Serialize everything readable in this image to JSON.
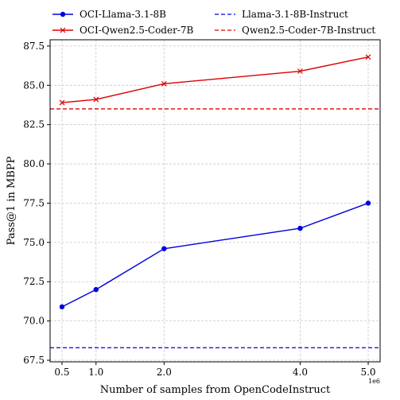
{
  "chart_data": {
    "type": "line",
    "xlabel": "Number of samples from OpenCodeInstruct",
    "ylabel": "Pass@1 in MBPP",
    "x_exponent_label": "1e6",
    "xlim": [
      0.325,
      5.175
    ],
    "ylim": [
      67.4,
      87.9
    ],
    "x_ticks": [
      0.5,
      1.0,
      2.0,
      4.0,
      5.0
    ],
    "x_tick_labels": [
      "0.5",
      "1.0",
      "2.0",
      "4.0",
      "5.0"
    ],
    "y_ticks": [
      67.5,
      70.0,
      72.5,
      75.0,
      77.5,
      80.0,
      82.5,
      85.0,
      87.5
    ],
    "y_tick_labels": [
      "67.5",
      "70.0",
      "72.5",
      "75.0",
      "77.5",
      "80.0",
      "82.5",
      "85.0",
      "87.5"
    ],
    "grid": true,
    "legend_placement": "top",
    "series": [
      {
        "name": "OCI-Llama-3.1-8B",
        "color": "#0000dd",
        "marker": "circle",
        "x": [
          0.5,
          1.0,
          2.0,
          4.0,
          5.0
        ],
        "y": [
          70.9,
          72.0,
          74.6,
          75.9,
          77.5
        ]
      },
      {
        "name": "OCI-Qwen2.5-Coder-7B",
        "color": "#dd0000",
        "marker": "x",
        "x": [
          0.5,
          1.0,
          2.0,
          4.0,
          5.0
        ],
        "y": [
          83.9,
          84.1,
          85.1,
          85.9,
          86.8
        ]
      }
    ],
    "baselines": [
      {
        "name": "Llama-3.1-8B-Instruct",
        "color": "#0000dd",
        "y": 68.3
      },
      {
        "name": "Qwen2.5-Coder-7B-Instruct",
        "color": "#dd0000",
        "y": 83.5
      }
    ]
  }
}
